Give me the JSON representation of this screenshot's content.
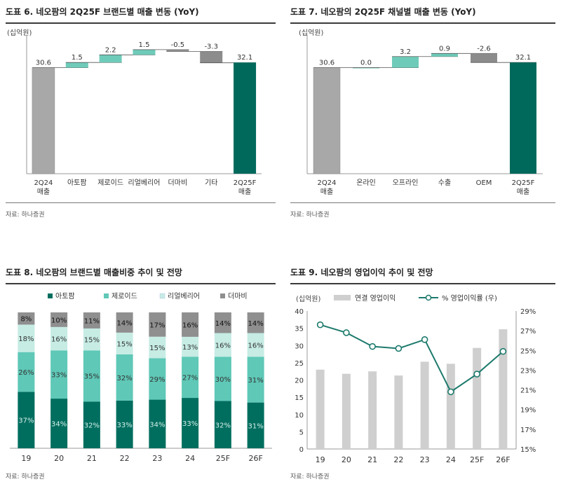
{
  "source_label": "자료: 하나증권",
  "chart_data": [
    {
      "id": "c1",
      "type": "waterfall",
      "title": "도표 6. 네오팜의 2Q25F 브랜드별 매출 변동 (YoY)",
      "unit": "(십억원)",
      "categories": [
        "2Q24\n매출",
        "아토팜",
        "제로이드",
        "리얼베리어",
        "더마비",
        "기타",
        "2Q25F\n매출"
      ],
      "values": [
        30.6,
        1.5,
        2.2,
        1.5,
        -0.5,
        -3.3,
        32.1
      ],
      "labels": [
        "30.6",
        "1.5",
        "2.2",
        "1.5",
        "-0.5",
        "-3.3",
        "32.1"
      ],
      "kinds": [
        "total",
        "delta",
        "delta",
        "delta",
        "delta",
        "delta",
        "total"
      ],
      "ylim": [
        0,
        38
      ],
      "colors": {
        "start": "#a8a8a8",
        "end": "#00695c",
        "up": "#6fcbb9",
        "down": "#8c8c8c"
      }
    },
    {
      "id": "c2",
      "type": "waterfall",
      "title": "도표 7. 네오팜의 2Q25F 채널별 매출 변동 (YoY)",
      "unit": "(십억원)",
      "categories": [
        "2Q24\n매출",
        "온라인",
        "오프라인",
        "수출",
        "OEM",
        "2Q25F\n매출"
      ],
      "values": [
        30.6,
        0.0,
        3.2,
        0.9,
        -2.6,
        32.1
      ],
      "labels": [
        "30.6",
        "0.0",
        "3.2",
        "0.9",
        "-2.6",
        "32.1"
      ],
      "kinds": [
        "total",
        "delta",
        "delta",
        "delta",
        "delta",
        "total"
      ],
      "ylim": [
        0,
        38
      ],
      "colors": {
        "start": "#a8a8a8",
        "end": "#00695c",
        "up": "#6fcbb9",
        "down": "#8c8c8c"
      }
    },
    {
      "id": "c3",
      "type": "stacked_bar_100",
      "title": "도표 8. 네오팜의 브랜드별 매출비중 추이 및 전망",
      "categories": [
        "19",
        "20",
        "21",
        "22",
        "23",
        "24",
        "25F",
        "26F"
      ],
      "series": [
        {
          "name": "아토팜",
          "values": [
            37,
            34,
            32,
            33,
            34,
            33,
            32,
            31
          ],
          "color": "#006e5f"
        },
        {
          "name": "제로이드",
          "values": [
            26,
            33,
            35,
            32,
            29,
            27,
            30,
            31
          ],
          "color": "#5fc8b7"
        },
        {
          "name": "리얼베리어",
          "values": [
            18,
            16,
            15,
            15,
            15,
            13,
            16,
            16
          ],
          "color": "#c6ece4"
        },
        {
          "name": "더마비",
          "values": [
            8,
            10,
            11,
            14,
            17,
            16,
            14,
            14
          ],
          "color": "#8f8f8f"
        }
      ]
    },
    {
      "id": "c4",
      "type": "bar_line_combo",
      "title": "도표 9. 네오팜의 영업이익 추이 및 전망",
      "unit": "(십억원)",
      "categories": [
        "19",
        "20",
        "21",
        "22",
        "23",
        "24",
        "25F",
        "26F"
      ],
      "bar_series": {
        "name": "연결 영업이익",
        "values": [
          23.0,
          21.8,
          22.5,
          21.3,
          25.3,
          24.7,
          29.3,
          34.7
        ],
        "color": "#cfcfcf"
      },
      "line_series": {
        "name": "% 영업이익률 (우)",
        "values": [
          27.6,
          26.8,
          25.4,
          25.2,
          26.1,
          20.8,
          22.6,
          24.9
        ],
        "color": "#1d7a6c"
      },
      "y_left": {
        "min": 0,
        "max": 40,
        "ticks": [
          "0",
          "5",
          "10",
          "15",
          "20",
          "25",
          "30",
          "35",
          "40"
        ]
      },
      "y_right": {
        "min": 15,
        "max": 29,
        "ticks": [
          "15%",
          "17%",
          "19%",
          "21%",
          "23%",
          "25%",
          "27%",
          "29%"
        ]
      }
    }
  ]
}
